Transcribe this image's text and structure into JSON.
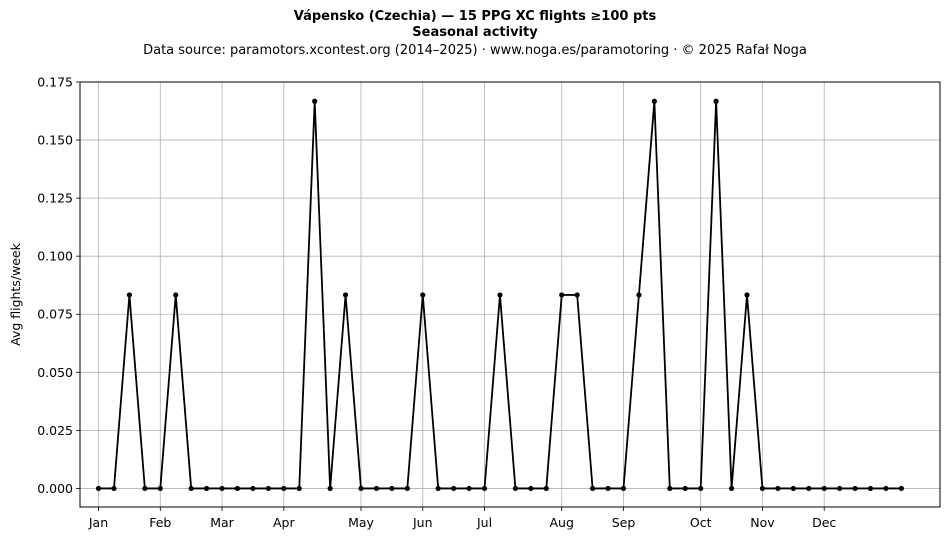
{
  "chart_data": {
    "type": "line",
    "title": "Vápensko (Czechia)  —  15 PPG XC flights ≥100 pts",
    "subtitle": "Seasonal activity",
    "source": "Data source: paramotors.xcontest.org (2014–2025)  ·  www.noga.es/paramotoring  ·  © 2025 Rafał Noga",
    "xlabel": "",
    "ylabel": "Avg flights/week",
    "ylim": [
      -0.008,
      0.175
    ],
    "xlim": [
      -1.2,
      54.5
    ],
    "grid": true,
    "line_color": "#000000",
    "grid_color": "#b0b0b0",
    "month_ticks": [
      {
        "label": "Jan",
        "week": 0
      },
      {
        "label": "Feb",
        "week": 4
      },
      {
        "label": "Mar",
        "week": 8
      },
      {
        "label": "Apr",
        "week": 12
      },
      {
        "label": "May",
        "week": 17
      },
      {
        "label": "Jun",
        "week": 21
      },
      {
        "label": "Jul",
        "week": 25
      },
      {
        "label": "Aug",
        "week": 30
      },
      {
        "label": "Sep",
        "week": 34
      },
      {
        "label": "Oct",
        "week": 39
      },
      {
        "label": "Nov",
        "week": 43
      },
      {
        "label": "Dec",
        "week": 47
      }
    ],
    "y_ticks": [
      {
        "label": "0.000",
        "value": 0
      },
      {
        "label": "0.025",
        "value": 0.025
      },
      {
        "label": "0.050",
        "value": 0.05
      },
      {
        "label": "0.075",
        "value": 0.075
      },
      {
        "label": "0.100",
        "value": 0.1
      },
      {
        "label": "0.125",
        "value": 0.125
      },
      {
        "label": "0.150",
        "value": 0.15
      },
      {
        "label": "0.175",
        "value": 0.175
      }
    ],
    "series": [
      {
        "values": [
          0,
          0,
          0.0833,
          0,
          0,
          0.0833,
          0,
          0,
          0,
          0,
          0,
          0,
          0,
          0,
          0.1667,
          0,
          0.0833,
          0,
          0,
          0,
          0,
          0.0833,
          0,
          0,
          0,
          0,
          0.0833,
          0,
          0,
          0,
          0.0833,
          0.0833,
          0,
          0,
          0,
          0.0833,
          0.1667,
          0,
          0,
          0,
          0.1667,
          0,
          0.0833,
          0,
          0,
          0,
          0,
          0,
          0,
          0,
          0,
          0,
          0
        ]
      }
    ]
  }
}
